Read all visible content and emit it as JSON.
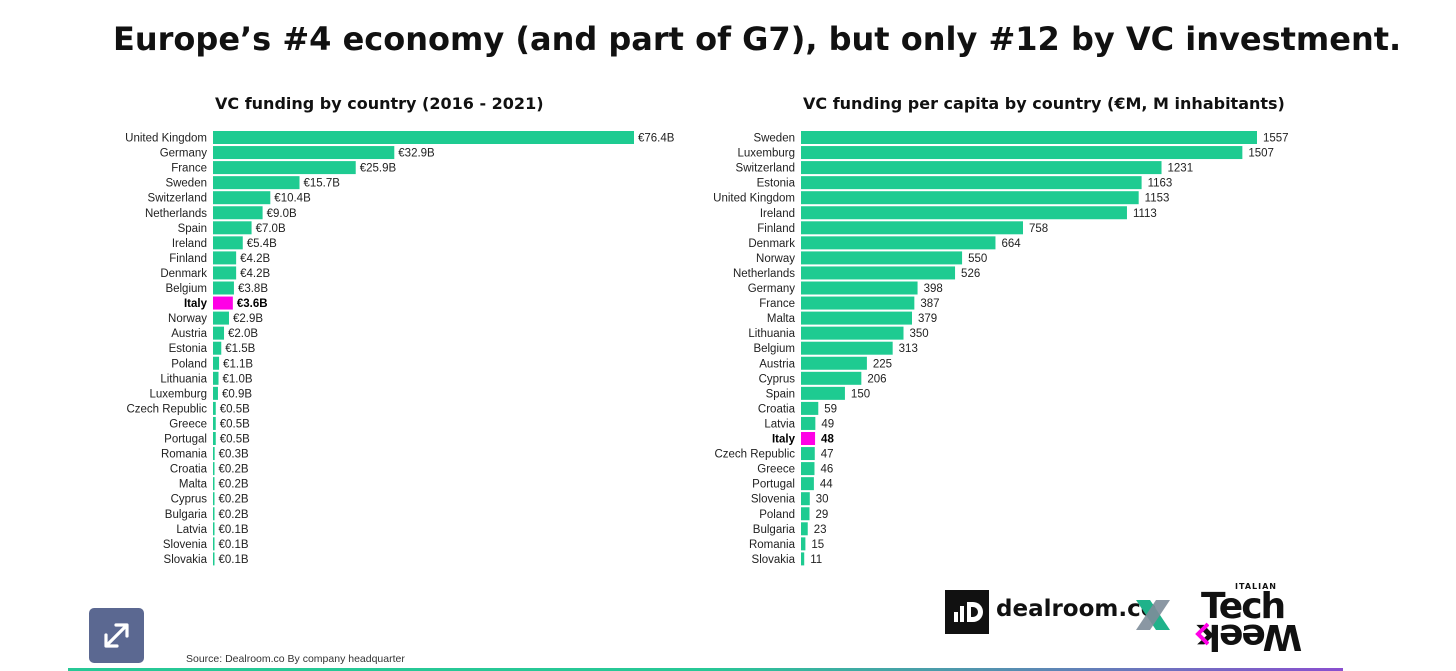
{
  "title": "Europe’s #4 economy (and part of G7), but only #12 by VC investment.",
  "colors": {
    "bar": "#1ecb91",
    "highlight": "#ff00e6",
    "highlight_category": "Italy"
  },
  "chart_data": [
    {
      "type": "bar",
      "orientation": "horizontal",
      "title": "VC funding by country (2016 - 2021)",
      "unit_prefix": "€",
      "unit_suffix": "B",
      "categories": [
        "United Kingdom",
        "Germany",
        "France",
        "Sweden",
        "Switzerland",
        "Netherlands",
        "Spain",
        "Ireland",
        "Finland",
        "Denmark",
        "Belgium",
        "Italy",
        "Norway",
        "Austria",
        "Estonia",
        "Poland",
        "Lithuania",
        "Luxemburg",
        "Czech Republic",
        "Greece",
        "Portugal",
        "Romania",
        "Croatia",
        "Malta",
        "Cyprus",
        "Bulgaria",
        "Latvia",
        "Slovenia",
        "Slovakia"
      ],
      "values": [
        76.4,
        32.9,
        25.9,
        15.7,
        10.4,
        9.0,
        7.0,
        5.4,
        4.2,
        4.2,
        3.8,
        3.6,
        2.9,
        2.0,
        1.5,
        1.1,
        1.0,
        0.9,
        0.5,
        0.5,
        0.5,
        0.3,
        0.2,
        0.2,
        0.2,
        0.2,
        0.1,
        0.1,
        0.1
      ],
      "labels": [
        "€76.4B",
        "€32.9B",
        "€25.9B",
        "€15.7B",
        "€10.4B",
        "€9.0B",
        "€7.0B",
        "€5.4B",
        "€4.2B",
        "€4.2B",
        "€3.8B",
        "€3.6B",
        "€2.9B",
        "€2.0B",
        "€1.5B",
        "€1.1B",
        "€1.0B",
        "€0.9B",
        "€0.5B",
        "€0.5B",
        "€0.5B",
        "€0.3B",
        "€0.2B",
        "€0.2B",
        "€0.2B",
        "€0.2B",
        "€0.1B",
        "€0.1B",
        "€0.1B"
      ],
      "xlim": [
        0,
        76.4
      ],
      "grid": false,
      "legend": false
    },
    {
      "type": "bar",
      "orientation": "horizontal",
      "title": "VC funding per capita by country (€M, M inhabitants)",
      "categories": [
        "Sweden",
        "Luxemburg",
        "Switzerland",
        "Estonia",
        "United Kingdom",
        "Ireland",
        "Finland",
        "Denmark",
        "Norway",
        "Netherlands",
        "Germany",
        "France",
        "Malta",
        "Lithuania",
        "Belgium",
        "Austria",
        "Cyprus",
        "Spain",
        "Croatia",
        "Latvia",
        "Italy",
        "Czech Republic",
        "Greece",
        "Portugal",
        "Slovenia",
        "Poland",
        "Bulgaria",
        "Romania",
        "Slovakia"
      ],
      "values": [
        1557,
        1507,
        1231,
        1163,
        1153,
        1113,
        758,
        664,
        550,
        526,
        398,
        387,
        379,
        350,
        313,
        225,
        206,
        150,
        59,
        49,
        48,
        47,
        46,
        44,
        30,
        29,
        23,
        15,
        11
      ],
      "labels": [
        "1557",
        "1507",
        "1231",
        "1163",
        "1153",
        "1113",
        "758",
        "664",
        "550",
        "526",
        "398",
        "387",
        "379",
        "350",
        "313",
        "225",
        "206",
        "150",
        "59",
        "49",
        "48",
        "47",
        "46",
        "44",
        "30",
        "29",
        "23",
        "15",
        "11"
      ],
      "xlim": [
        0,
        1557
      ],
      "grid": false,
      "legend": false
    }
  ],
  "source": "Source: Dealroom.co  By company headquarter",
  "logos": {
    "dealroom_text": "dealroom.co",
    "techweek_small": "ITALIAN",
    "techweek_big": "Tech",
    "techweek_flipped": "Week"
  }
}
